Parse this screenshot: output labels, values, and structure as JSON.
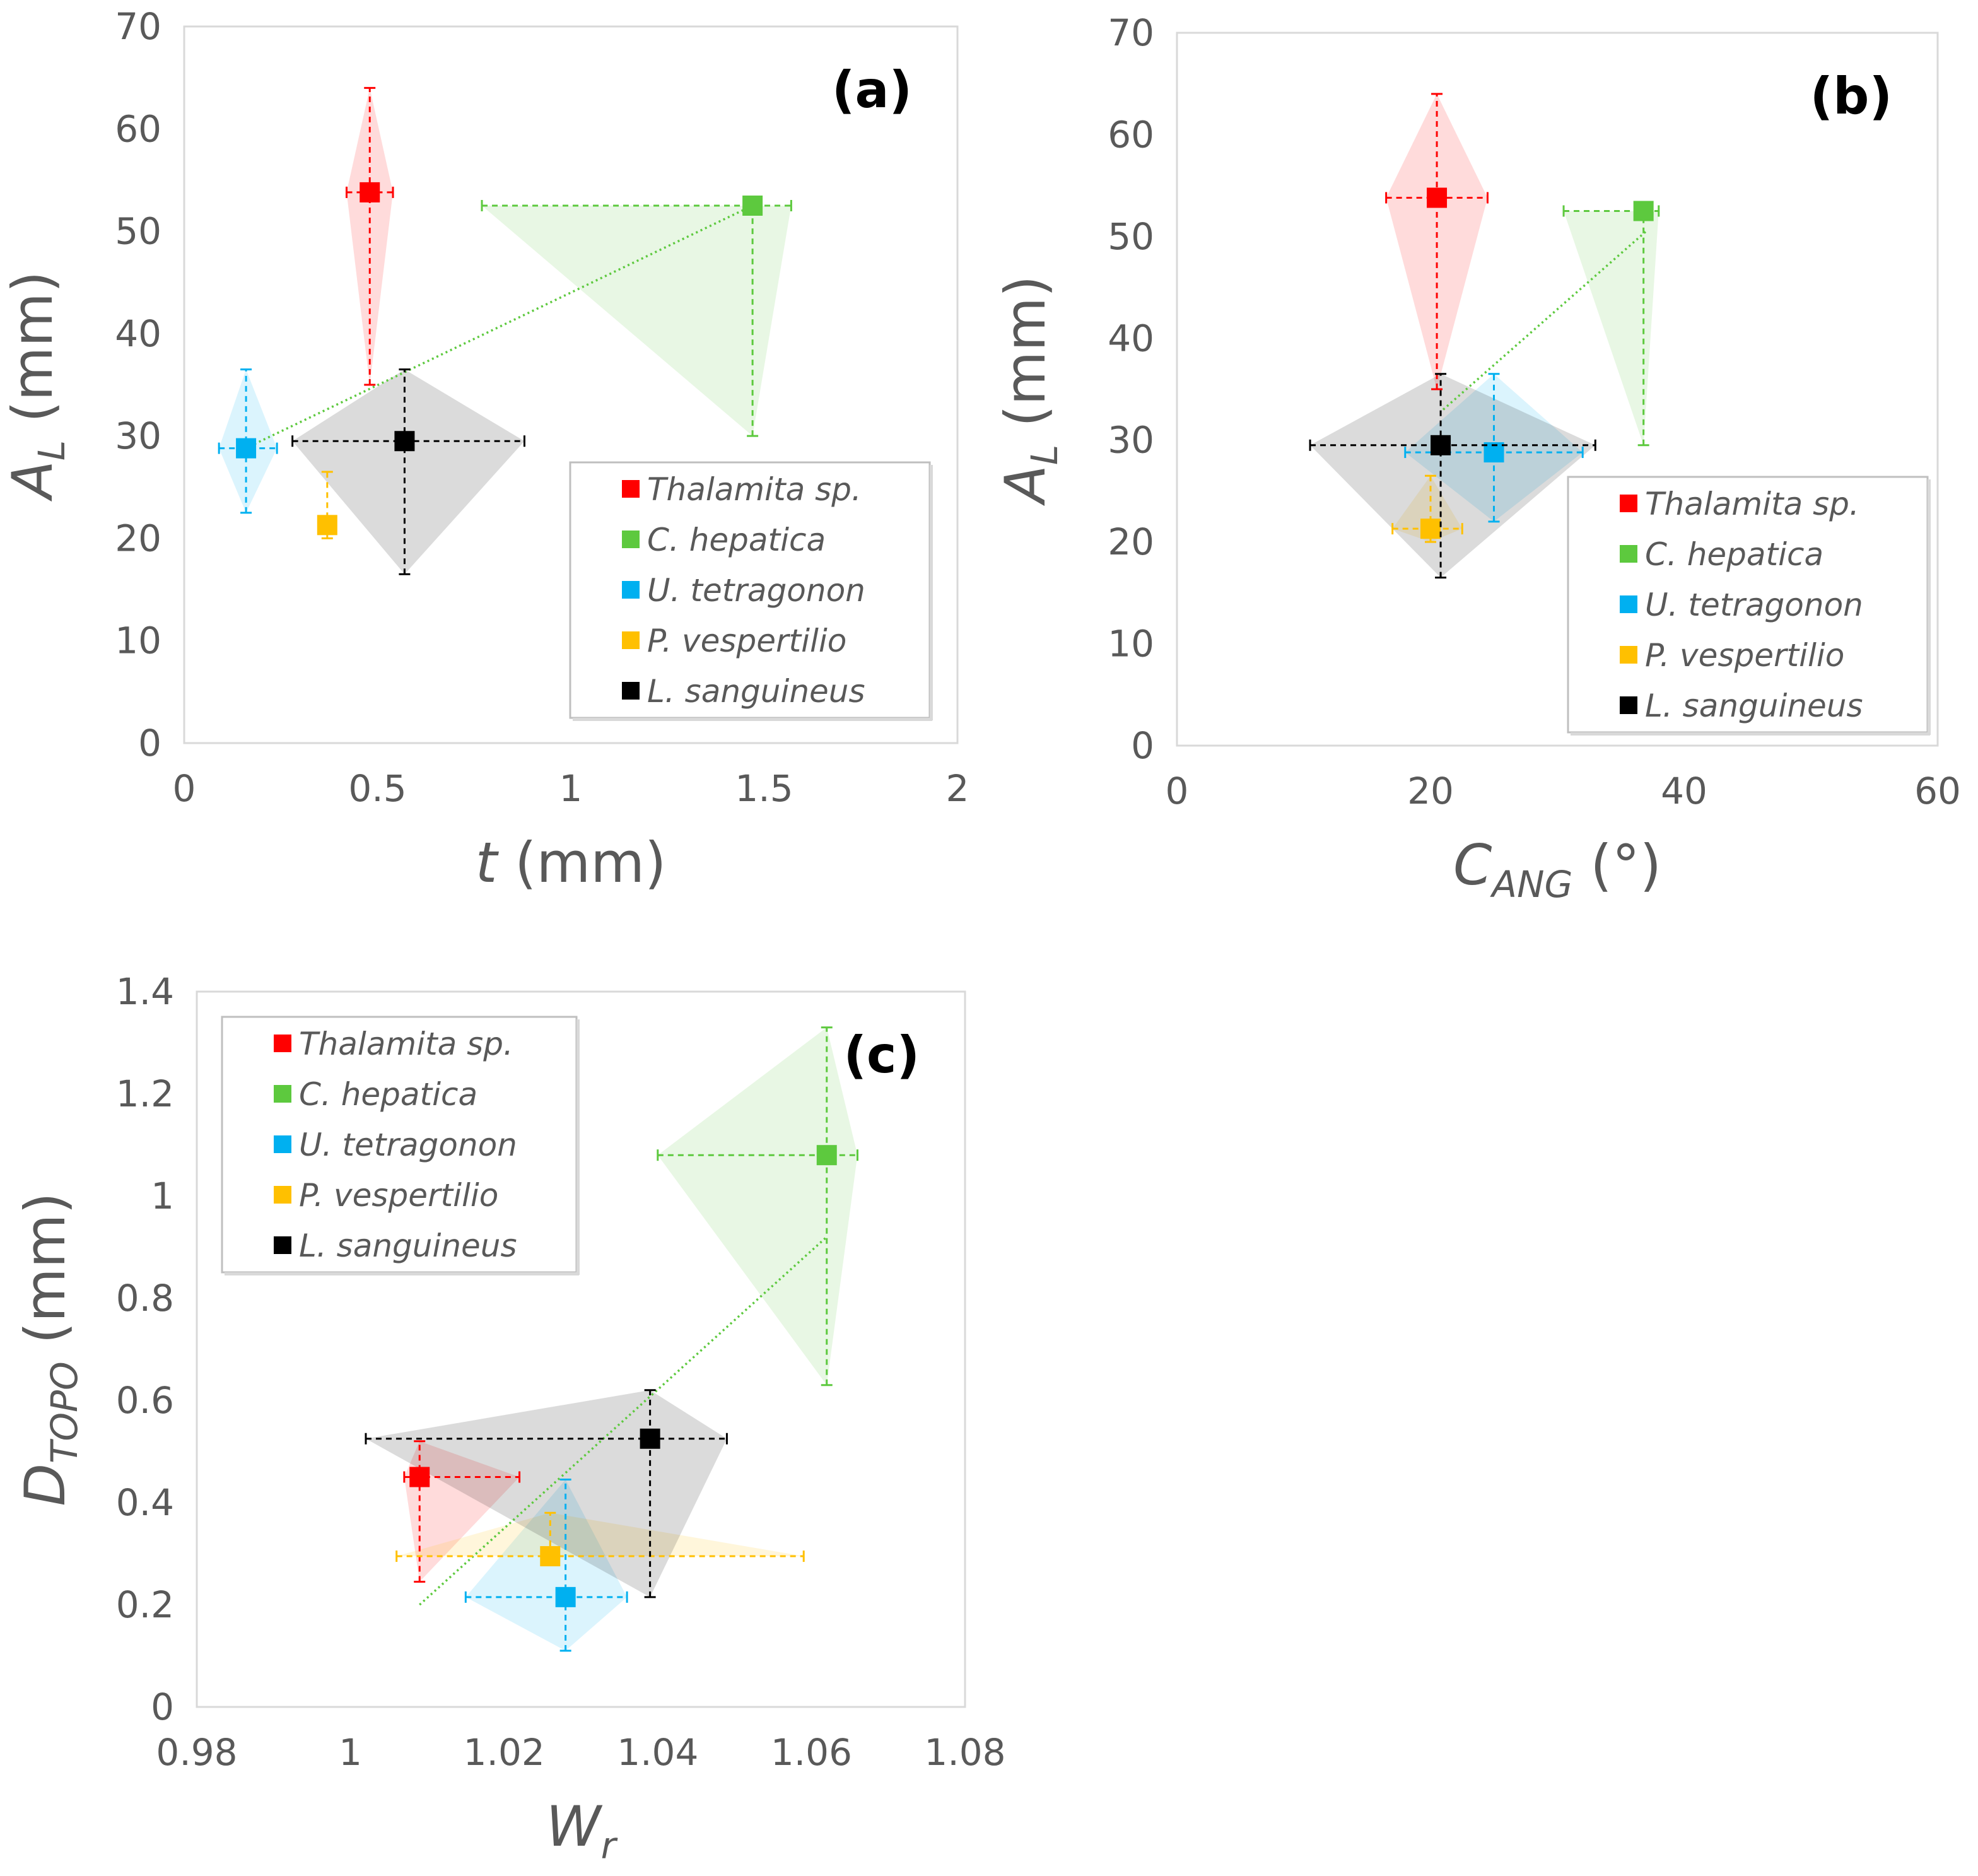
{
  "legend": [
    {
      "name": "Thalamita sp.",
      "color": "#ff0000"
    },
    {
      "name": "C. hepatica",
      "color": "#5dc93e"
    },
    {
      "name": "U. tetragonon",
      "color": "#00b0f0"
    },
    {
      "name": "P. vespertilio",
      "color": "#ffc000"
    },
    {
      "name": "L. sanguineus",
      "color": "#000000"
    }
  ],
  "chart_data": [
    {
      "type": "scatter",
      "panel_label": "(a)",
      "xlabel_main": "t",
      "xlabel_sub": "",
      "xlabel_unit": " (mm)",
      "xlabel_italic": true,
      "ylabel_main": "A",
      "ylabel_sub": "L",
      "ylabel_unit": " (mm)",
      "xlim": [
        0,
        2
      ],
      "ylim": [
        0,
        70
      ],
      "xticks": [
        "0",
        "0.5",
        "1",
        "1.5",
        "2"
      ],
      "yticks": [
        "0",
        "10",
        "20",
        "30",
        "40",
        "50",
        "60",
        "70"
      ],
      "legend_position": "bottom-right",
      "trendline": {
        "x": [
          0.17,
          1.47
        ],
        "y": [
          29,
          52.5
        ]
      },
      "series": [
        {
          "name": "Thalamita sp.",
          "x": 0.48,
          "y": 53.8,
          "xerr": [
            0.42,
            0.54
          ],
          "yerr": [
            35,
            64
          ]
        },
        {
          "name": "C. hepatica",
          "x": 1.47,
          "y": 52.5,
          "xerr": [
            0.77,
            1.57
          ],
          "yerr": [
            30,
            52.5
          ]
        },
        {
          "name": "U. tetragonon",
          "x": 0.16,
          "y": 28.8,
          "xerr": [
            0.09,
            0.24
          ],
          "yerr": [
            22.5,
            36.5
          ]
        },
        {
          "name": "P. vespertilio",
          "x": 0.37,
          "y": 21.3,
          "xerr": [
            0.37,
            0.37
          ],
          "yerr": [
            20,
            26.5
          ]
        },
        {
          "name": "L. sanguineus",
          "x": 0.57,
          "y": 29.5,
          "xerr": [
            0.28,
            0.88
          ],
          "yerr": [
            16.5,
            36.5
          ]
        }
      ]
    },
    {
      "type": "scatter",
      "panel_label": "(b)",
      "xlabel_main": "C",
      "xlabel_sub": "ANG",
      "xlabel_unit": " (°)",
      "xlabel_italic": true,
      "ylabel_main": "A",
      "ylabel_sub": "L",
      "ylabel_unit": " (mm)",
      "xlim": [
        0,
        60
      ],
      "ylim": [
        0,
        70
      ],
      "xticks": [
        "0",
        "20",
        "40",
        "60"
      ],
      "yticks": [
        "0",
        "10",
        "20",
        "30",
        "40",
        "50",
        "60",
        "70"
      ],
      "legend_position": "bottom-right",
      "trendline": {
        "x": [
          21,
          37
        ],
        "y": [
          33,
          50.5
        ]
      },
      "series": [
        {
          "name": "Thalamita sp.",
          "x": 20.5,
          "y": 53.8,
          "xerr": [
            16.5,
            24.5
          ],
          "yerr": [
            35,
            64
          ]
        },
        {
          "name": "C. hepatica",
          "x": 36.8,
          "y": 52.5,
          "xerr": [
            30.5,
            38
          ],
          "yerr": [
            29.5,
            52.5
          ]
        },
        {
          "name": "U. tetragonon",
          "x": 25,
          "y": 28.8,
          "xerr": [
            18,
            32
          ],
          "yerr": [
            22,
            36.5
          ]
        },
        {
          "name": "P. vespertilio",
          "x": 20,
          "y": 21.3,
          "xerr": [
            17,
            22.5
          ],
          "yerr": [
            20,
            26.5
          ]
        },
        {
          "name": "L. sanguineus",
          "x": 20.8,
          "y": 29.5,
          "xerr": [
            10.5,
            33
          ],
          "yerr": [
            16.5,
            36.5
          ]
        }
      ]
    },
    {
      "type": "scatter",
      "panel_label": "(c)",
      "xlabel_main": "W",
      "xlabel_sub": "r",
      "xlabel_unit": "",
      "xlabel_italic": true,
      "ylabel_main": "D",
      "ylabel_sub": "TOPO",
      "ylabel_unit": " (mm)",
      "xlim": [
        0.98,
        1.08
      ],
      "ylim": [
        0,
        1.4
      ],
      "xticks": [
        "0.98",
        "1",
        "1.02",
        "1.04",
        "1.06",
        "1.08"
      ],
      "yticks": [
        "0",
        "0.2",
        "0.4",
        "0.6",
        "0.8",
        "1",
        "1.2",
        "1.4"
      ],
      "legend_position": "top-left",
      "trendline": {
        "x": [
          1.009,
          1.062
        ],
        "y": [
          0.2,
          0.92
        ]
      },
      "series": [
        {
          "name": "Thalamita sp.",
          "x": 1.009,
          "y": 0.45,
          "xerr": [
            1.007,
            1.022
          ],
          "yerr": [
            0.245,
            0.52
          ]
        },
        {
          "name": "C. hepatica",
          "x": 1.062,
          "y": 1.08,
          "xerr": [
            1.04,
            1.066
          ],
          "yerr": [
            0.63,
            1.33
          ]
        },
        {
          "name": "U. tetragonon",
          "x": 1.028,
          "y": 0.215,
          "xerr": [
            1.015,
            1.036
          ],
          "yerr": [
            0.11,
            0.445
          ]
        },
        {
          "name": "P. vespertilio",
          "x": 1.026,
          "y": 0.295,
          "xerr": [
            1.006,
            1.059
          ],
          "yerr": [
            0.295,
            0.38
          ]
        },
        {
          "name": "L. sanguineus",
          "x": 1.039,
          "y": 0.525,
          "xerr": [
            1.002,
            1.049
          ],
          "yerr": [
            0.215,
            0.62
          ]
        }
      ]
    }
  ]
}
